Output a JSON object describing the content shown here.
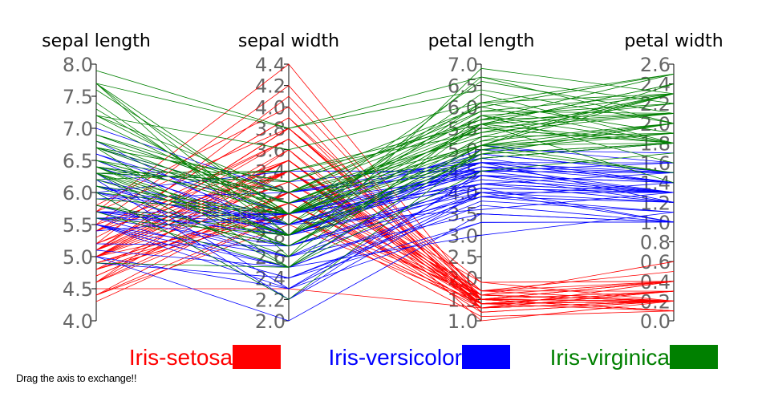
{
  "chart_data": {
    "type": "parallel-coordinates",
    "footer_text": "Drag the axis to exchange!!",
    "colors": {
      "Iris-setosa": "#ff0000",
      "Iris-versicolor": "#0000ff",
      "Iris-virginica": "#008000"
    },
    "axes": [
      {
        "name": "sepal length",
        "range": [
          4.0,
          8.0
        ],
        "ticks": [
          "4.0",
          "4.5",
          "5.0",
          "5.5",
          "6.0",
          "6.5",
          "7.0",
          "7.5",
          "8.0"
        ]
      },
      {
        "name": "sepal width",
        "range": [
          2.0,
          4.4
        ],
        "ticks": [
          "2.0",
          "2.2",
          "2.4",
          "2.6",
          "2.8",
          "3.0",
          "3.2",
          "3.4",
          "3.6",
          "3.8",
          "4.0",
          "4.2",
          "4.4"
        ]
      },
      {
        "name": "petal length",
        "range": [
          1.0,
          7.0
        ],
        "ticks": [
          "1.0",
          "1.5",
          "2.0",
          "2.5",
          "3.0",
          "3.5",
          "4.0",
          "4.5",
          "5.0",
          "5.5",
          "6.0",
          "6.5",
          "7.0"
        ]
      },
      {
        "name": "petal width",
        "range": [
          0.0,
          2.6
        ],
        "ticks": [
          "0.0",
          "0.2",
          "0.4",
          "0.6",
          "0.8",
          "1.0",
          "1.2",
          "1.4",
          "1.6",
          "1.8",
          "2.0",
          "2.2",
          "2.4",
          "2.6"
        ]
      }
    ],
    "legend": [
      "Iris-setosa",
      "Iris-versicolor",
      "Iris-virginica"
    ],
    "series": [
      {
        "name": "Iris-setosa",
        "rows": [
          [
            5.1,
            3.5,
            1.4,
            0.2
          ],
          [
            4.9,
            3.0,
            1.4,
            0.2
          ],
          [
            4.7,
            3.2,
            1.3,
            0.2
          ],
          [
            4.6,
            3.1,
            1.5,
            0.2
          ],
          [
            5.0,
            3.6,
            1.4,
            0.2
          ],
          [
            5.4,
            3.9,
            1.7,
            0.4
          ],
          [
            4.6,
            3.4,
            1.4,
            0.3
          ],
          [
            5.0,
            3.4,
            1.5,
            0.2
          ],
          [
            4.4,
            2.9,
            1.4,
            0.2
          ],
          [
            4.9,
            3.1,
            1.5,
            0.1
          ],
          [
            5.4,
            3.7,
            1.5,
            0.2
          ],
          [
            4.8,
            3.4,
            1.6,
            0.2
          ],
          [
            4.8,
            3.0,
            1.4,
            0.1
          ],
          [
            4.3,
            3.0,
            1.1,
            0.1
          ],
          [
            5.8,
            4.0,
            1.2,
            0.2
          ],
          [
            5.7,
            4.4,
            1.5,
            0.4
          ],
          [
            5.4,
            3.9,
            1.3,
            0.4
          ],
          [
            5.1,
            3.5,
            1.4,
            0.3
          ],
          [
            5.7,
            3.8,
            1.7,
            0.3
          ],
          [
            5.1,
            3.8,
            1.5,
            0.3
          ],
          [
            5.4,
            3.4,
            1.7,
            0.2
          ],
          [
            5.1,
            3.7,
            1.5,
            0.4
          ],
          [
            4.6,
            3.6,
            1.0,
            0.2
          ],
          [
            5.1,
            3.3,
            1.7,
            0.5
          ],
          [
            4.8,
            3.4,
            1.9,
            0.2
          ],
          [
            5.0,
            3.0,
            1.6,
            0.2
          ],
          [
            5.0,
            3.4,
            1.6,
            0.4
          ],
          [
            5.2,
            3.5,
            1.5,
            0.2
          ],
          [
            5.2,
            3.4,
            1.4,
            0.2
          ],
          [
            4.7,
            3.2,
            1.6,
            0.2
          ],
          [
            4.8,
            3.1,
            1.6,
            0.2
          ],
          [
            5.4,
            3.4,
            1.5,
            0.4
          ],
          [
            5.2,
            4.1,
            1.5,
            0.1
          ],
          [
            5.5,
            4.2,
            1.4,
            0.2
          ],
          [
            4.9,
            3.1,
            1.5,
            0.1
          ],
          [
            5.0,
            3.2,
            1.2,
            0.2
          ],
          [
            5.5,
            3.5,
            1.3,
            0.2
          ],
          [
            4.9,
            3.1,
            1.5,
            0.1
          ],
          [
            4.4,
            3.0,
            1.3,
            0.2
          ],
          [
            5.1,
            3.4,
            1.5,
            0.2
          ],
          [
            5.0,
            3.5,
            1.3,
            0.3
          ],
          [
            4.5,
            2.3,
            1.3,
            0.3
          ],
          [
            4.4,
            3.2,
            1.3,
            0.2
          ],
          [
            5.0,
            3.5,
            1.6,
            0.6
          ],
          [
            5.1,
            3.8,
            1.9,
            0.4
          ],
          [
            4.8,
            3.0,
            1.4,
            0.3
          ],
          [
            5.1,
            3.8,
            1.6,
            0.2
          ],
          [
            4.6,
            3.2,
            1.4,
            0.2
          ],
          [
            5.3,
            3.7,
            1.5,
            0.2
          ],
          [
            5.0,
            3.3,
            1.4,
            0.2
          ]
        ]
      },
      {
        "name": "Iris-versicolor",
        "rows": [
          [
            7.0,
            3.2,
            4.7,
            1.4
          ],
          [
            6.4,
            3.2,
            4.5,
            1.5
          ],
          [
            6.9,
            3.1,
            4.9,
            1.5
          ],
          [
            5.5,
            2.3,
            4.0,
            1.3
          ],
          [
            6.5,
            2.8,
            4.6,
            1.5
          ],
          [
            5.7,
            2.8,
            4.5,
            1.3
          ],
          [
            6.3,
            3.3,
            4.7,
            1.6
          ],
          [
            4.9,
            2.4,
            3.3,
            1.0
          ],
          [
            6.6,
            2.9,
            4.6,
            1.3
          ],
          [
            5.2,
            2.7,
            3.9,
            1.4
          ],
          [
            5.0,
            2.0,
            3.5,
            1.0
          ],
          [
            5.9,
            3.0,
            4.2,
            1.5
          ],
          [
            6.0,
            2.2,
            4.0,
            1.0
          ],
          [
            6.1,
            2.9,
            4.7,
            1.4
          ],
          [
            5.6,
            2.9,
            3.6,
            1.3
          ],
          [
            6.7,
            3.1,
            4.4,
            1.4
          ],
          [
            5.6,
            3.0,
            4.5,
            1.5
          ],
          [
            5.8,
            2.7,
            4.1,
            1.0
          ],
          [
            6.2,
            2.2,
            4.5,
            1.5
          ],
          [
            5.6,
            2.5,
            3.9,
            1.1
          ],
          [
            5.9,
            3.2,
            4.8,
            1.8
          ],
          [
            6.1,
            2.8,
            4.0,
            1.3
          ],
          [
            6.3,
            2.5,
            4.9,
            1.5
          ],
          [
            6.1,
            2.8,
            4.7,
            1.2
          ],
          [
            6.4,
            2.9,
            4.3,
            1.3
          ],
          [
            6.6,
            3.0,
            4.4,
            1.4
          ],
          [
            6.8,
            2.8,
            4.8,
            1.4
          ],
          [
            6.7,
            3.0,
            5.0,
            1.7
          ],
          [
            6.0,
            2.9,
            4.5,
            1.5
          ],
          [
            5.7,
            2.6,
            3.5,
            1.0
          ],
          [
            5.5,
            2.4,
            3.8,
            1.1
          ],
          [
            5.5,
            2.4,
            3.7,
            1.0
          ],
          [
            5.8,
            2.7,
            3.9,
            1.2
          ],
          [
            6.0,
            2.7,
            5.1,
            1.6
          ],
          [
            5.4,
            3.0,
            4.5,
            1.5
          ],
          [
            6.0,
            3.4,
            4.5,
            1.6
          ],
          [
            6.7,
            3.1,
            4.7,
            1.5
          ],
          [
            6.3,
            2.3,
            4.4,
            1.3
          ],
          [
            5.6,
            3.0,
            4.1,
            1.3
          ],
          [
            5.5,
            2.5,
            4.0,
            1.3
          ],
          [
            5.5,
            2.6,
            4.4,
            1.2
          ],
          [
            6.1,
            3.0,
            4.6,
            1.4
          ],
          [
            5.8,
            2.6,
            4.0,
            1.2
          ],
          [
            5.0,
            2.3,
            3.3,
            1.0
          ],
          [
            5.6,
            2.7,
            4.2,
            1.3
          ],
          [
            5.7,
            3.0,
            4.2,
            1.2
          ],
          [
            5.7,
            2.9,
            4.2,
            1.3
          ],
          [
            6.2,
            2.9,
            4.3,
            1.3
          ],
          [
            5.1,
            2.5,
            3.0,
            1.1
          ],
          [
            5.7,
            2.8,
            4.1,
            1.3
          ]
        ]
      },
      {
        "name": "Iris-virginica",
        "rows": [
          [
            6.3,
            3.3,
            6.0,
            2.5
          ],
          [
            5.8,
            2.7,
            5.1,
            1.9
          ],
          [
            7.1,
            3.0,
            5.9,
            2.1
          ],
          [
            6.3,
            2.9,
            5.6,
            1.8
          ],
          [
            6.5,
            3.0,
            5.8,
            2.2
          ],
          [
            7.6,
            3.0,
            6.6,
            2.1
          ],
          [
            4.9,
            2.5,
            4.5,
            1.7
          ],
          [
            7.3,
            2.9,
            6.3,
            1.8
          ],
          [
            6.7,
            2.5,
            5.8,
            1.8
          ],
          [
            7.2,
            3.6,
            6.1,
            2.5
          ],
          [
            6.5,
            3.2,
            5.1,
            2.0
          ],
          [
            6.4,
            2.7,
            5.3,
            1.9
          ],
          [
            6.8,
            3.0,
            5.5,
            2.1
          ],
          [
            5.7,
            2.5,
            5.0,
            2.0
          ],
          [
            5.8,
            2.8,
            5.1,
            2.4
          ],
          [
            6.4,
            3.2,
            5.3,
            2.3
          ],
          [
            6.5,
            3.0,
            5.5,
            1.8
          ],
          [
            7.7,
            3.8,
            6.7,
            2.2
          ],
          [
            7.7,
            2.6,
            6.9,
            2.3
          ],
          [
            6.0,
            2.2,
            5.0,
            1.5
          ],
          [
            6.9,
            3.2,
            5.7,
            2.3
          ],
          [
            5.6,
            2.8,
            4.9,
            2.0
          ],
          [
            7.7,
            2.8,
            6.7,
            2.0
          ],
          [
            6.3,
            2.7,
            4.9,
            1.8
          ],
          [
            6.7,
            3.3,
            5.7,
            2.1
          ],
          [
            7.2,
            3.2,
            6.0,
            1.8
          ],
          [
            6.2,
            2.8,
            4.8,
            1.8
          ],
          [
            6.1,
            3.0,
            4.9,
            1.8
          ],
          [
            6.4,
            2.8,
            5.6,
            2.1
          ],
          [
            7.2,
            3.0,
            5.8,
            1.6
          ],
          [
            7.4,
            2.8,
            6.1,
            1.9
          ],
          [
            7.9,
            3.8,
            6.4,
            2.0
          ],
          [
            6.4,
            2.8,
            5.6,
            2.2
          ],
          [
            6.3,
            2.8,
            5.1,
            1.5
          ],
          [
            6.1,
            2.6,
            5.6,
            1.4
          ],
          [
            7.7,
            3.0,
            6.1,
            2.3
          ],
          [
            6.3,
            3.4,
            5.6,
            2.4
          ],
          [
            6.4,
            3.1,
            5.5,
            1.8
          ],
          [
            6.0,
            3.0,
            4.8,
            1.8
          ],
          [
            6.9,
            3.1,
            5.4,
            2.1
          ],
          [
            6.7,
            3.1,
            5.6,
            2.4
          ],
          [
            6.9,
            3.1,
            5.1,
            2.3
          ],
          [
            5.8,
            2.7,
            5.1,
            1.9
          ],
          [
            6.8,
            3.2,
            5.9,
            2.3
          ],
          [
            6.7,
            3.3,
            5.7,
            2.5
          ],
          [
            6.7,
            3.0,
            5.2,
            2.3
          ],
          [
            6.3,
            2.5,
            5.0,
            1.9
          ],
          [
            6.5,
            3.0,
            5.2,
            2.0
          ],
          [
            6.2,
            3.4,
            5.4,
            2.3
          ],
          [
            5.9,
            3.0,
            5.1,
            1.8
          ]
        ]
      }
    ]
  }
}
